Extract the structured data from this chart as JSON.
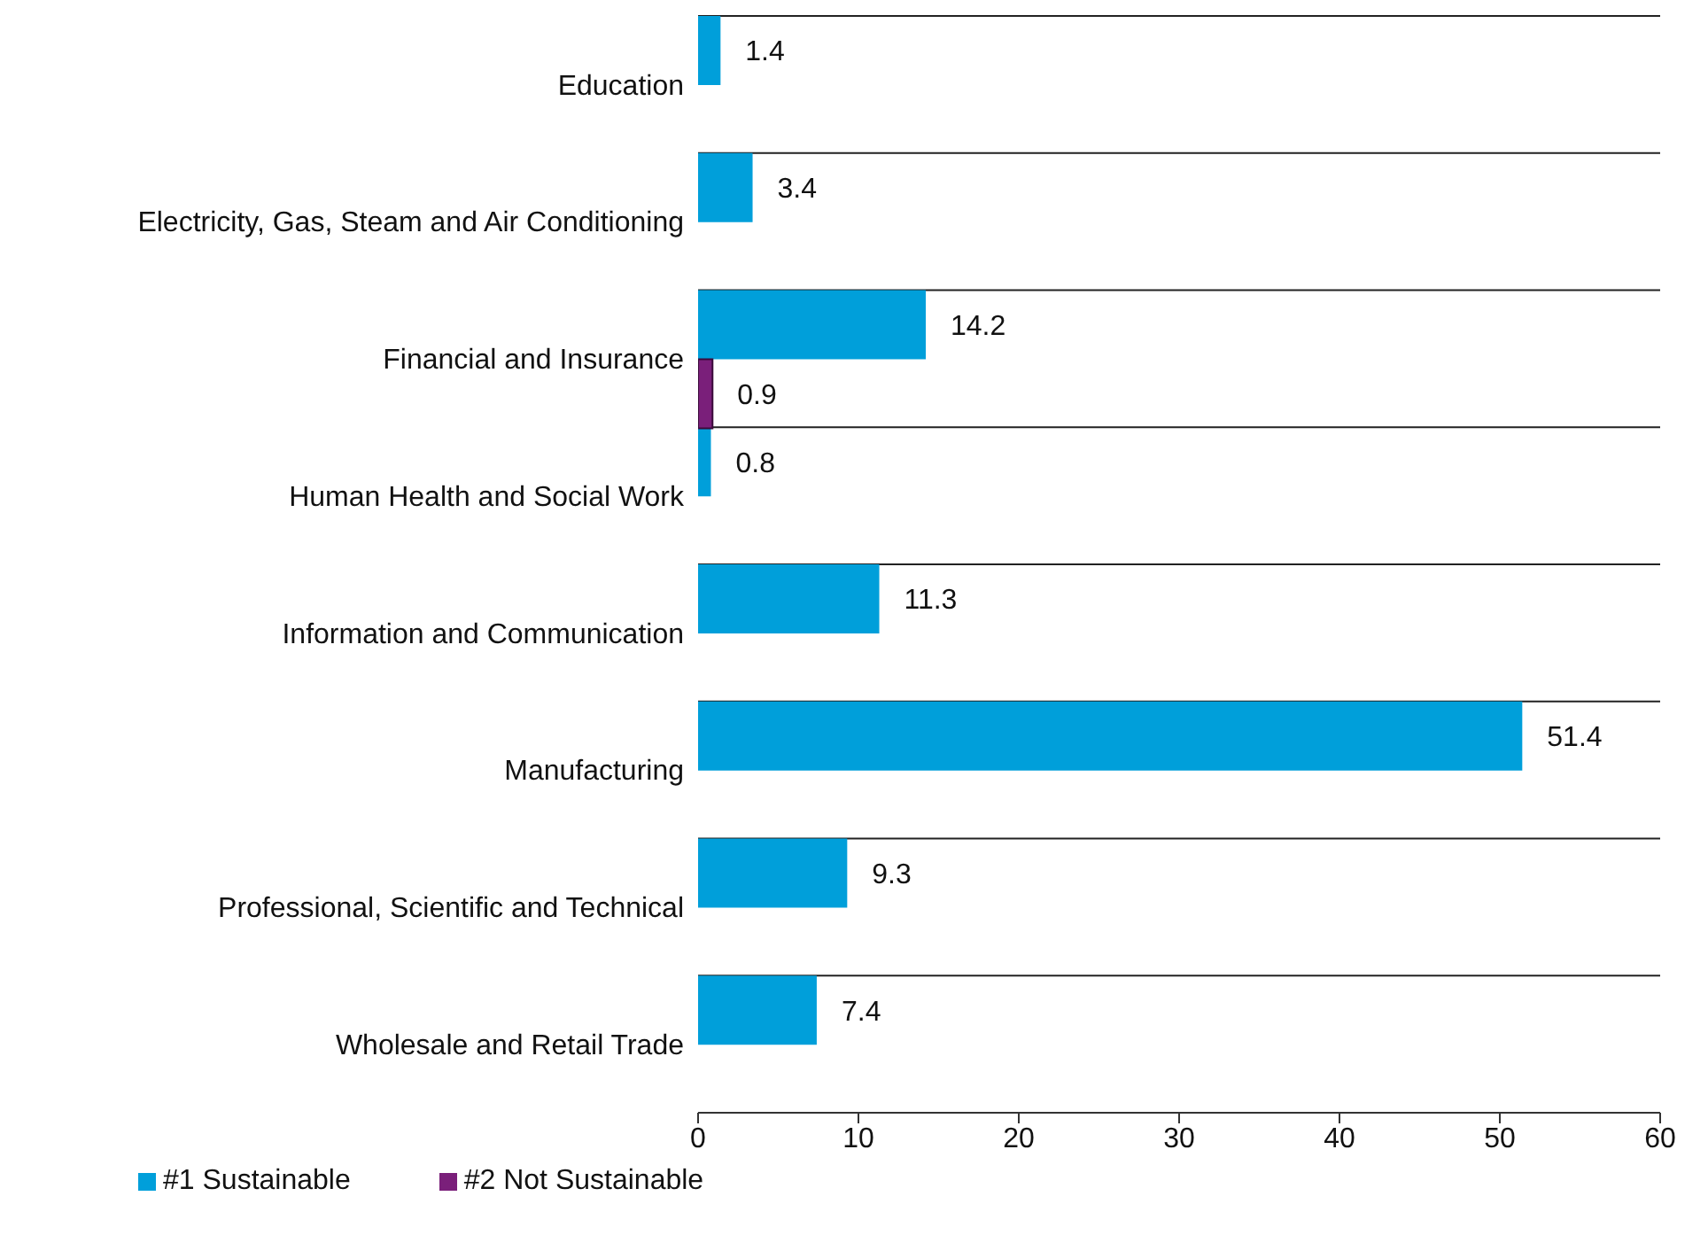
{
  "chart_data": {
    "type": "bar",
    "orientation": "horizontal",
    "categories": [
      "Education",
      "Electricity, Gas, Steam and Air Conditioning",
      "Financial and Insurance",
      "Human Health and Social Work",
      "Information and Communication",
      "Manufacturing",
      "Professional, Scientific and Technical",
      "Wholesale and Retail Trade"
    ],
    "series": [
      {
        "name": "#1 Sustainable",
        "color": "#009fda",
        "values": [
          1.4,
          3.4,
          14.2,
          0.8,
          11.3,
          51.4,
          9.3,
          7.4
        ]
      },
      {
        "name": "#2 Not Sustainable",
        "color": "#7a1f7a",
        "values": [
          null,
          null,
          0.9,
          null,
          null,
          null,
          null,
          null
        ]
      }
    ],
    "xlim": [
      0,
      60
    ],
    "xticks": [
      0,
      10,
      20,
      30,
      40,
      50,
      60
    ],
    "grid": "y",
    "legend": "bottom left",
    "data_labels": true
  }
}
